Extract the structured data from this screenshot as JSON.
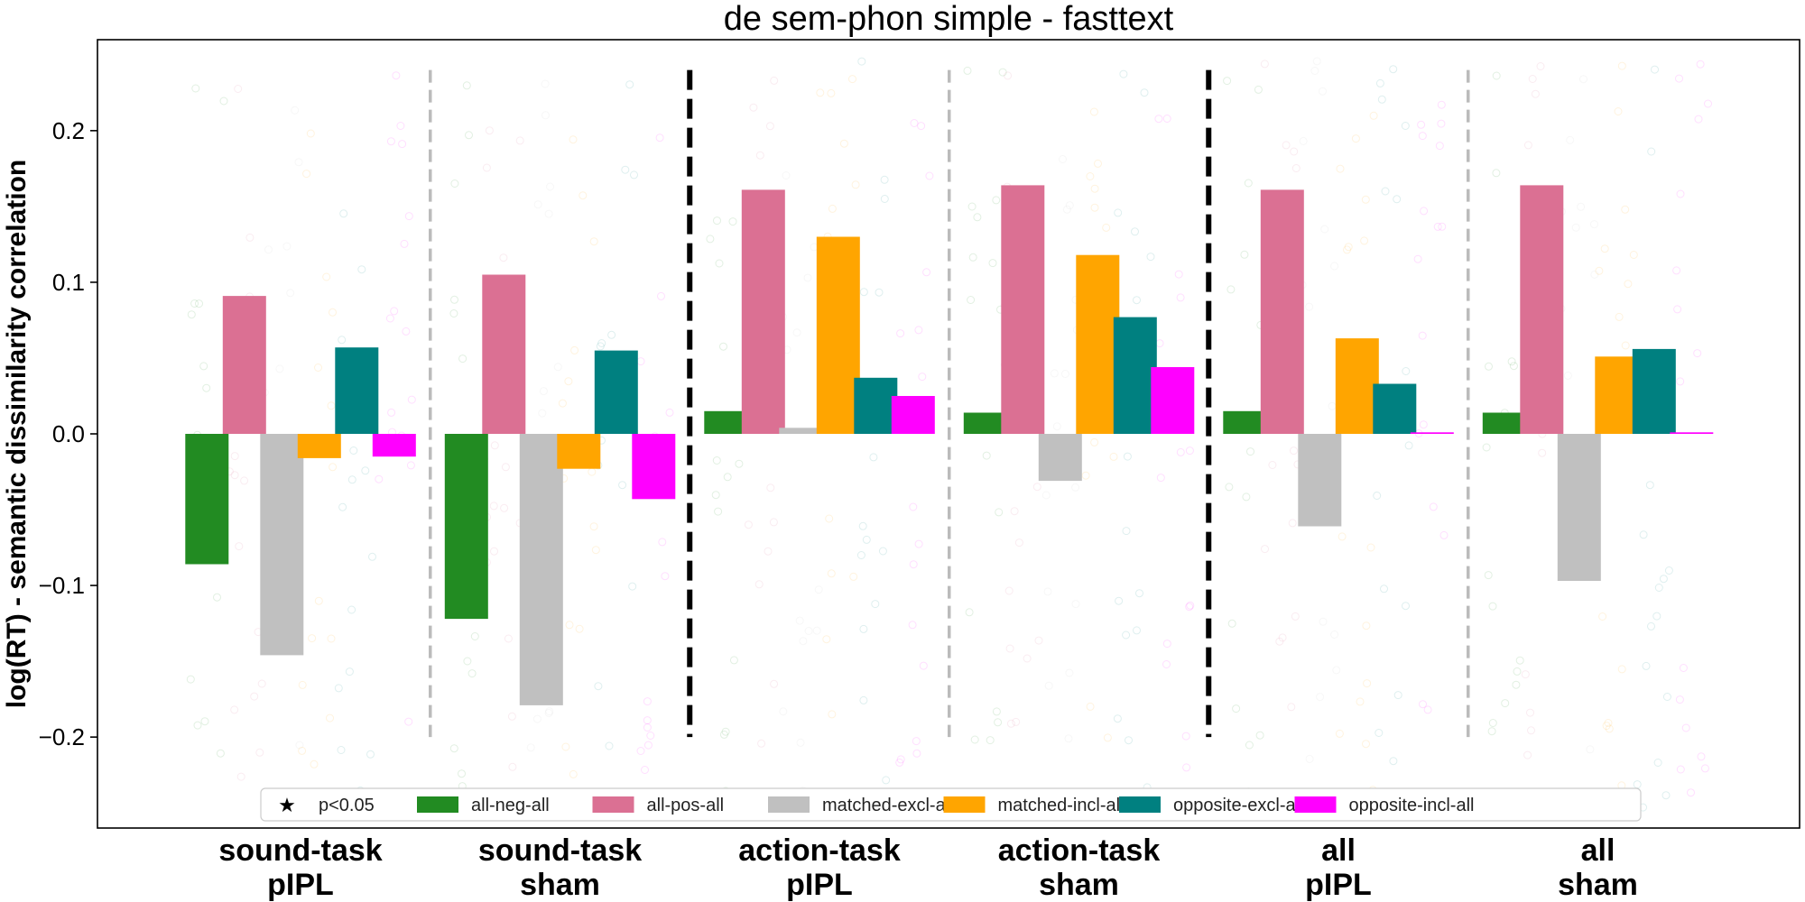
{
  "chart_data": {
    "type": "bar",
    "title": "de sem-phon simple - fasttext",
    "xlabel": "",
    "ylabel": "log(RT) - semantic dissimilarity correlation",
    "ylim": [
      -0.26,
      0.26
    ],
    "yticks": [
      -0.2,
      -0.1,
      0.0,
      0.1,
      0.2
    ],
    "ytick_labels": [
      "−0.2",
      "−0.1",
      "0.0",
      "0.1",
      "0.2"
    ],
    "categories": [
      [
        "sound-task",
        "pIPL"
      ],
      [
        "sound-task",
        "sham"
      ],
      [
        "action-task",
        "pIPL"
      ],
      [
        "action-task",
        "sham"
      ],
      [
        "all",
        "pIPL"
      ],
      [
        "all",
        "sham"
      ]
    ],
    "series": [
      {
        "name": "all-neg-all",
        "color": "#228b22",
        "values": [
          -0.086,
          -0.122,
          0.015,
          0.014,
          0.015,
          0.014
        ]
      },
      {
        "name": "all-pos-all",
        "color": "#db7093",
        "values": [
          0.091,
          0.105,
          0.161,
          0.164,
          0.161,
          0.164
        ]
      },
      {
        "name": "matched-excl-all",
        "color": "#c0c0c0",
        "values": [
          -0.146,
          -0.179,
          0.004,
          -0.031,
          -0.061,
          -0.097
        ]
      },
      {
        "name": "matched-incl-all",
        "color": "#ffa500",
        "values": [
          -0.016,
          -0.023,
          0.13,
          0.118,
          0.063,
          0.051
        ]
      },
      {
        "name": "opposite-excl-all",
        "color": "#008080",
        "values": [
          0.057,
          0.055,
          0.037,
          0.077,
          0.033,
          0.056
        ]
      },
      {
        "name": "opposite-incl-all",
        "color": "#ff00ff",
        "values": [
          -0.015,
          -0.043,
          0.025,
          0.044,
          0.001,
          0.001
        ]
      }
    ],
    "separators": [
      {
        "after_group": 0,
        "style": "gray-dashed"
      },
      {
        "after_group": 1,
        "style": "black-dashed"
      },
      {
        "after_group": 2,
        "style": "gray-dashed"
      },
      {
        "after_group": 3,
        "style": "black-dashed"
      },
      {
        "after_group": 4,
        "style": "gray-dashed"
      }
    ],
    "legend": {
      "placement": "bottom",
      "significance_label": "p<0.05",
      "significance_marker": "★"
    },
    "background_points": "faint scattered per-subject circles",
    "grid": false
  }
}
